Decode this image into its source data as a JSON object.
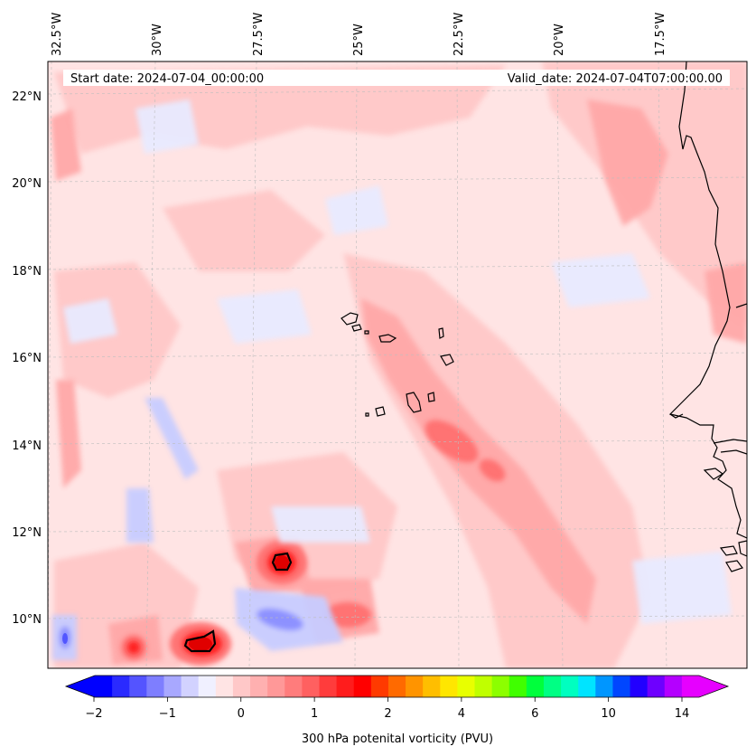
{
  "header": {
    "start_date": "Start date: 2024-07-04_00:00:00",
    "valid_date": "Valid_date: 2024-07-04T07:00:00.00"
  },
  "map": {
    "lon_labels": [
      "32.5°W",
      "30°W",
      "27.5°W",
      "25°W",
      "22.5°W",
      "20°W",
      "17.5°W"
    ],
    "lat_labels": [
      "22°N",
      "20°N",
      "18°N",
      "16°N",
      "14°N",
      "12°N",
      "10°N"
    ],
    "lon_range_deg": [
      -33,
      -15.8
    ],
    "lat_range_deg": [
      8.9,
      22.8
    ],
    "land_features": [
      "Cabo Verde islands",
      "West African coastline (Senegal, The Gambia, Guinea-Bissau)"
    ]
  },
  "colorbar": {
    "label": "300 hPa potenital vorticity (PVU)",
    "tick_labels": [
      "−2",
      "−1",
      "0",
      "1",
      "2",
      "4",
      "6",
      "10",
      "14"
    ],
    "tick_values": [
      -2,
      -1,
      0,
      1,
      2,
      4,
      6,
      10,
      14
    ],
    "colors": [
      "#0000ff",
      "#2a2aff",
      "#5454ff",
      "#7e7eff",
      "#a8a8ff",
      "#d2d2ff",
      "#f0f0ff",
      "#ffe4e4",
      "#ffc8c8",
      "#ffb0b0",
      "#ff9898",
      "#ff7c7c",
      "#ff6060",
      "#ff3c3c",
      "#ff1c1c",
      "#ff0000",
      "#ff3a00",
      "#ff6a00",
      "#ff9400",
      "#ffbe00",
      "#ffe600",
      "#e8ff00",
      "#c0ff00",
      "#8cff00",
      "#40ff00",
      "#00ff3c",
      "#00ff84",
      "#00ffc0",
      "#00e4ff",
      "#0096ff",
      "#0046ff",
      "#2200ff",
      "#6e00ff",
      "#b400ff",
      "#e600ff"
    ],
    "extend": "both"
  },
  "legend_colors": {
    "background_pv": "#ffe4e4",
    "negative_pv": "#e8eaff",
    "moderate_pv": "#ffb0b0",
    "high_pv": "#ff3a3a",
    "coastline": "#000000",
    "gridline": "#bdbdbd"
  }
}
